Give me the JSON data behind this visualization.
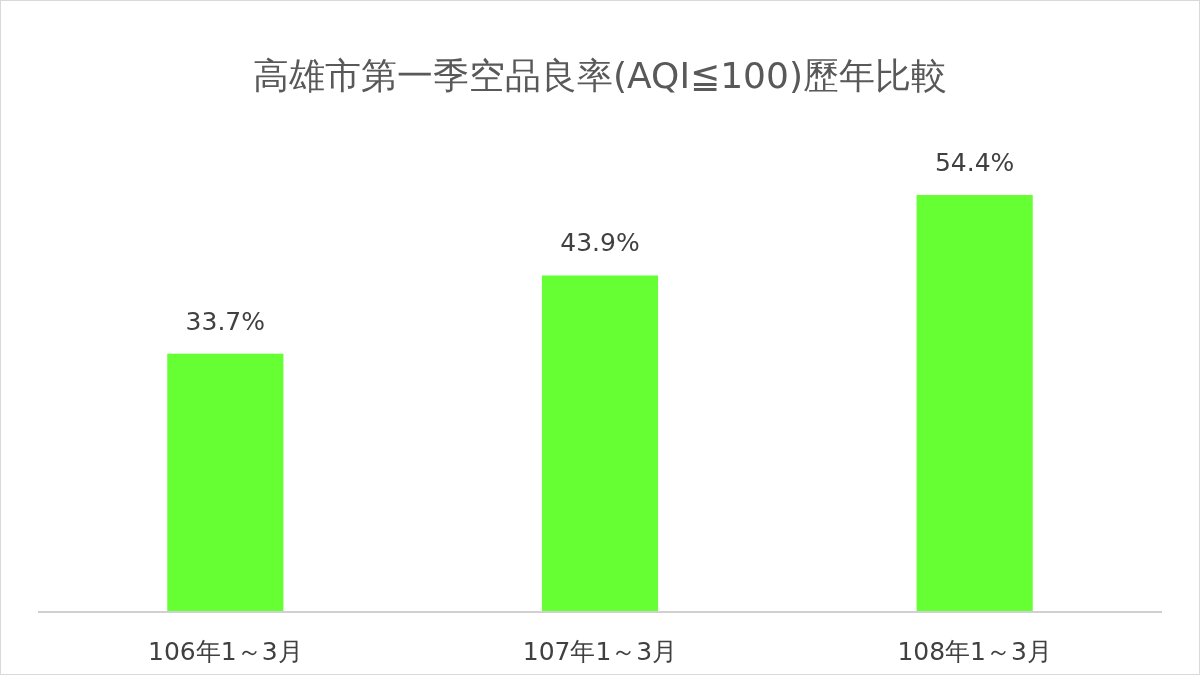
{
  "chart_data": {
    "type": "bar",
    "title": "高雄市第一季空品良率(AQI≦100)歷年比較",
    "categories": [
      "106年1～3月",
      "107年1～3月",
      "108年1～3月"
    ],
    "values": [
      33.7,
      43.9,
      54.4
    ],
    "value_labels": [
      "33.7%",
      "43.9%",
      "54.4%"
    ],
    "color": "#66ff33"
  }
}
